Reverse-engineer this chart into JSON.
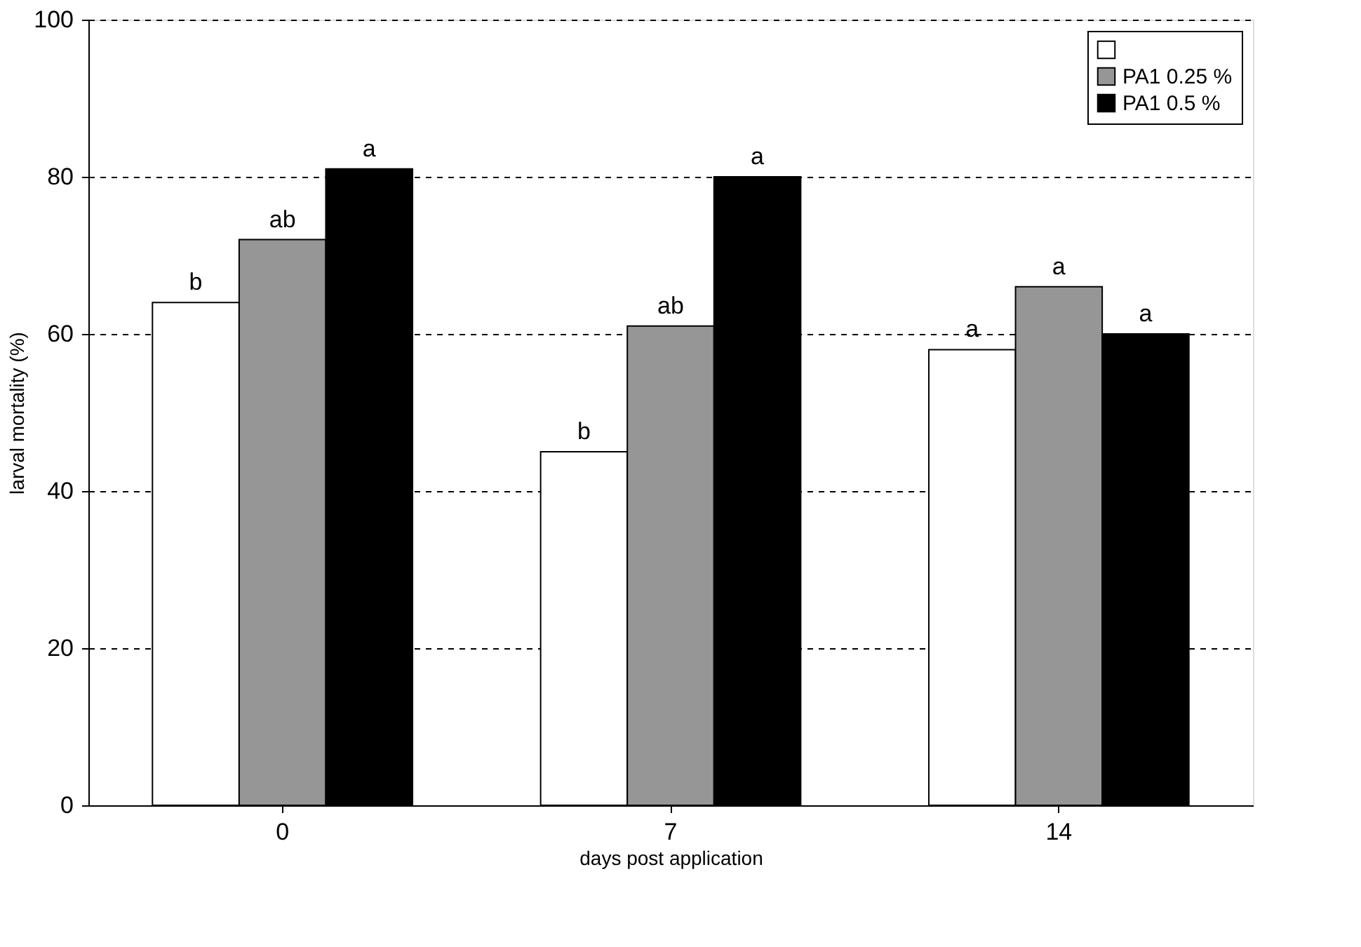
{
  "chart_data": {
    "type": "bar",
    "xlabel": "days post application",
    "ylabel": "larval mortality (%)",
    "categories": [
      "0",
      "7",
      "14"
    ],
    "series": [
      {
        "color": "#ffffff",
        "values": [
          64,
          45,
          58
        ]
      },
      {
        "name": "PA1 0.25 %",
        "color": "#969696",
        "values": [
          72,
          61,
          66
        ]
      },
      {
        "name": "PA1 0.5 %",
        "color": "#000000",
        "values": [
          81,
          80,
          60
        ]
      }
    ],
    "ylim": [
      0,
      100
    ],
    "yticks": [
      0,
      20,
      40,
      60,
      80,
      100
    ],
    "grid": "y",
    "legend": "top right",
    "annotations": [
      "b",
      "ab",
      "a",
      "b",
      "ab",
      "a",
      "a",
      "a",
      "a"
    ]
  }
}
